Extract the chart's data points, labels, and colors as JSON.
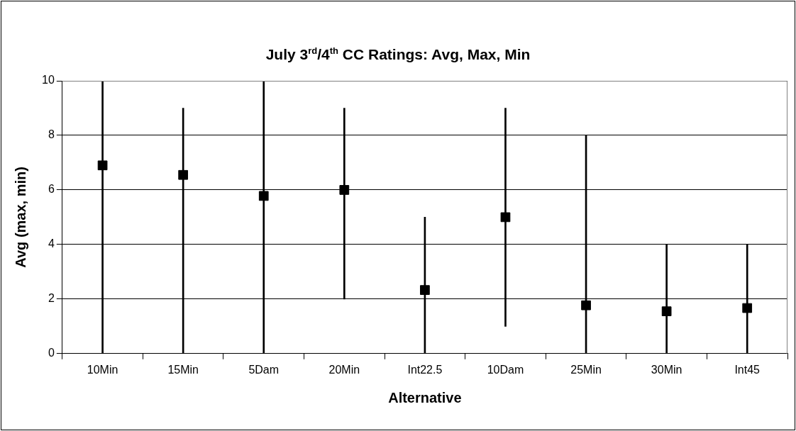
{
  "chart_data": {
    "type": "scatter",
    "title": "July 3$^{rd}$/4$^{th}$ CC Ratings: Avg, Max, Min",
    "xlabel": "Alternative",
    "ylabel": "Avg (max, min)",
    "categories": [
      "10Min",
      "15Min",
      "5Dam",
      "20Min",
      "Int22.5",
      "10Dam",
      "25Min",
      "30Min",
      "Int45"
    ],
    "series": [
      {
        "type": "bar",
        "color": "#000000",
        "base": [
          0,
          0,
          0,
          2,
          0,
          1,
          0,
          0,
          0
        ],
        "values": [
          10,
          9,
          10,
          7,
          5,
          8,
          8,
          4,
          4
        ]
      },
      {
        "color": "#000000",
        "values": [
          6.9,
          6.55,
          5.78,
          6.0,
          2.33,
          5.0,
          1.77,
          1.55,
          1.67
        ]
      }
    ],
    "marker": "square",
    "ylim": [
      0,
      10
    ],
    "yticks": [
      0,
      2,
      4,
      6,
      8,
      10
    ],
    "grid": "y"
  }
}
